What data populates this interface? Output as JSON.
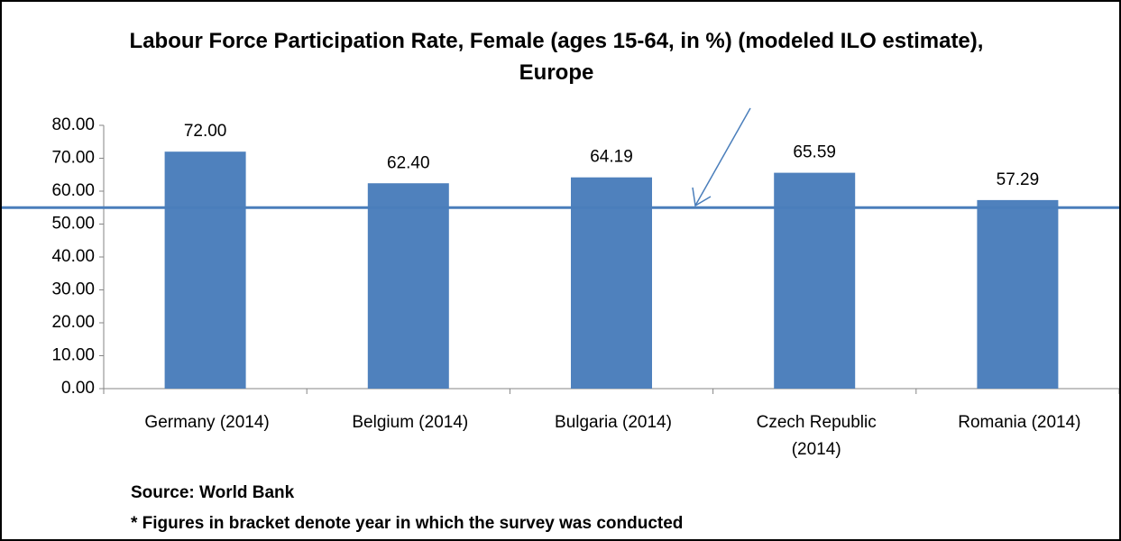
{
  "chart_data": {
    "type": "bar",
    "title": "Labour Force Participation Rate, Female (ages 15-64, in %) (modeled ILO estimate), Europe",
    "categories": [
      "Germany (2014)",
      "Belgium (2014)",
      "Bulgaria (2014)",
      "Czech Republic (2014)",
      "Romania (2014)"
    ],
    "values": [
      72.0,
      62.4,
      64.19,
      65.59,
      57.29
    ],
    "value_labels": [
      "72.00",
      "62.40",
      "64.19",
      "65.59",
      "57.29"
    ],
    "color": "#4f81bd",
    "reference_value": 55,
    "reference_color": "#4a7ebb",
    "ylim": [
      0,
      80
    ],
    "yticks": [
      {
        "value": 0,
        "label": "0.00"
      },
      {
        "value": 10,
        "label": "10.00"
      },
      {
        "value": 20,
        "label": "20.00"
      },
      {
        "value": 30,
        "label": "30.00"
      },
      {
        "value": 40,
        "label": "40.00"
      },
      {
        "value": 50,
        "label": "50.00"
      },
      {
        "value": 60,
        "label": "60.00"
      },
      {
        "value": 70,
        "label": "70.00"
      },
      {
        "value": 80,
        "label": "80.00"
      }
    ],
    "grid": false,
    "notes": [
      "Source: World Bank",
      "* Figures in bracket denote year in which the survey was conducted"
    ]
  }
}
